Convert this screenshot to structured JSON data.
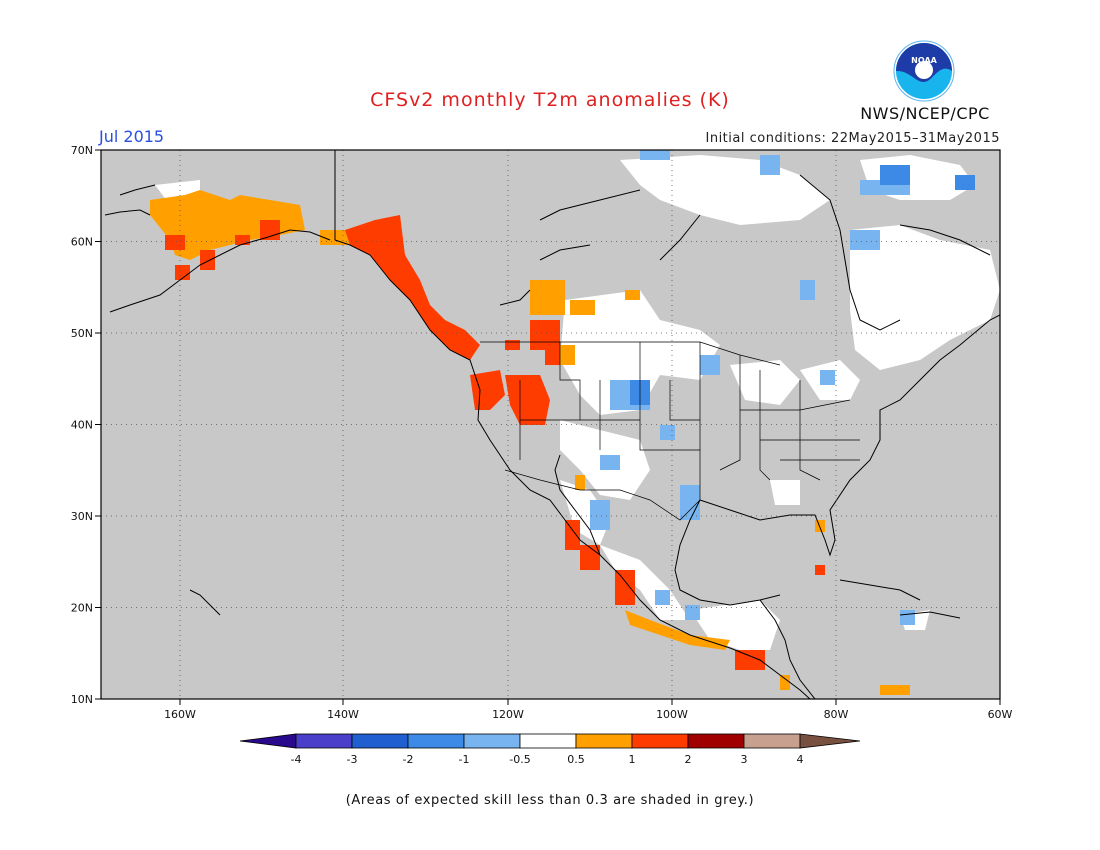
{
  "title": "CFSv2 monthly T2m anomalies (K)",
  "valid_month": "Jul 2015",
  "initial_conditions": "Initial conditions: 22May2015–31May2015",
  "agency": "NWS/NCEP/CPC",
  "logo_text": "NOAA",
  "footnote": "(Areas of expected skill less than 0.3 are shaded in grey.)",
  "map": {
    "lon_range": [
      -172,
      -60
    ],
    "lat_range": [
      10,
      70
    ],
    "lat_ticks": [
      "10N",
      "20N",
      "30N",
      "40N",
      "50N",
      "60N",
      "70N"
    ],
    "lon_ticks": [
      "160W",
      "140W",
      "120W",
      "100W",
      "80W",
      "60W"
    ],
    "grid": "dotted",
    "background_color": "#c8c8c8",
    "coastline_color": "#000000"
  },
  "colorbar": {
    "labels": [
      "-4",
      "-3",
      "-2",
      "-1",
      "-0.5",
      "0.5",
      "1",
      "2",
      "3",
      "4"
    ],
    "colors": [
      "#2a0a8c",
      "#4a3fc8",
      "#1f5fd0",
      "#3c8ae6",
      "#78b4f0",
      "#ffffff",
      "#ffa000",
      "#ff3c00",
      "#a00000",
      "#c8a090",
      "#785040"
    ]
  },
  "anomaly_regions": [
    {
      "name": "alaska-interior",
      "value": "0.5 to 1"
    },
    {
      "name": "alaska-south",
      "value": "1 to 2"
    },
    {
      "name": "pacific-northwest-coast",
      "value": "1 to 2"
    },
    {
      "name": "great-basin",
      "value": "1 to 2"
    },
    {
      "name": "northern-rockies",
      "value": "0.5 to 1"
    },
    {
      "name": "central-plains",
      "value": "-1 to -0.5"
    },
    {
      "name": "mexico-pacific-coast",
      "value": "0.5 to 2"
    },
    {
      "name": "hudson-bay-quebec",
      "value": "-0.5 to 0.5"
    },
    {
      "name": "arctic-islands",
      "value": "-2 to -0.5"
    }
  ]
}
